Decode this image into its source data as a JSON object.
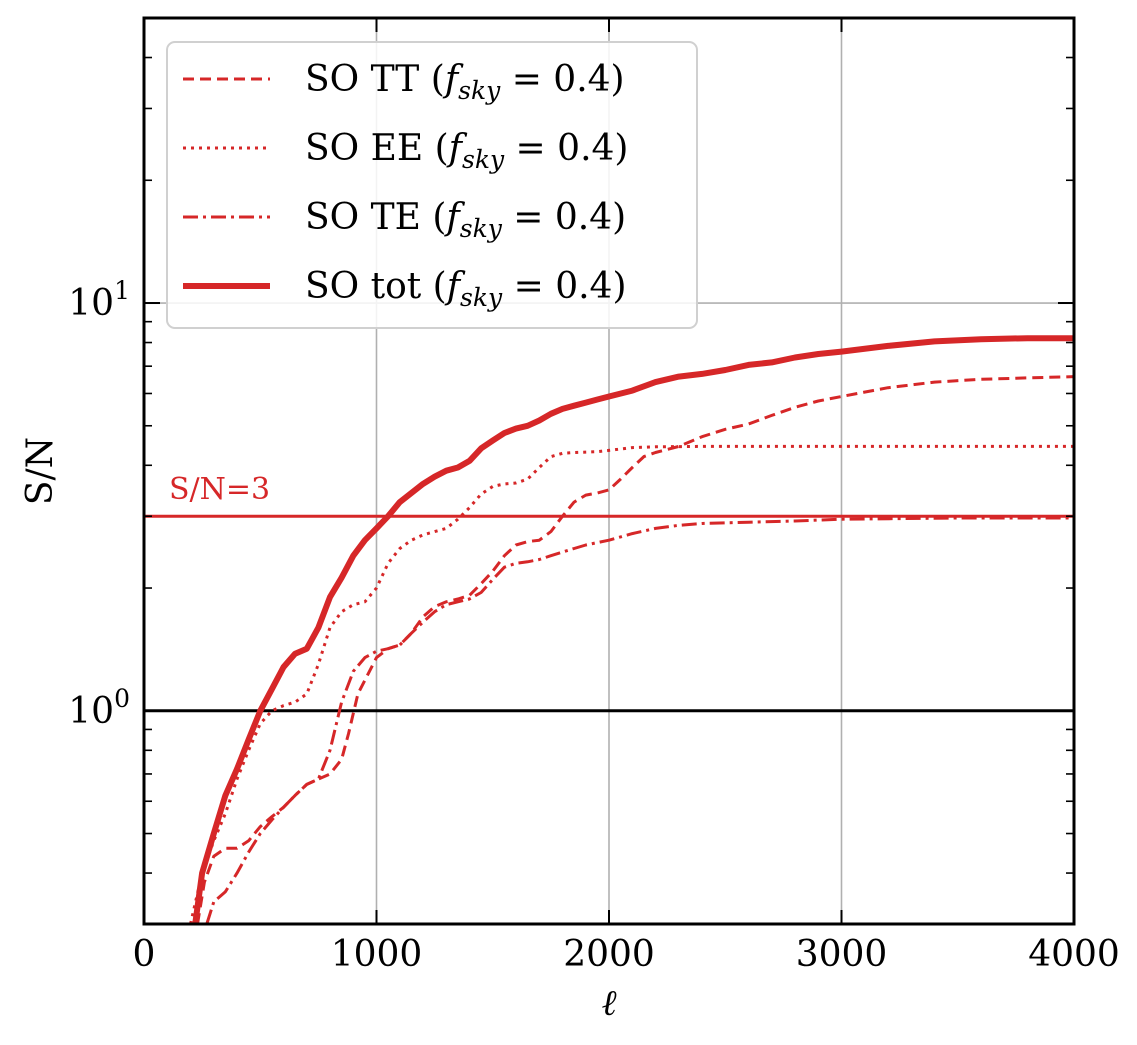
{
  "chart_data": {
    "type": "line",
    "title": "",
    "xlabel": "ℓ",
    "ylabel": "S/N",
    "x_scale": "linear",
    "y_scale": "log",
    "xlim": [
      0,
      4000
    ],
    "ylim": [
      0.3,
      50
    ],
    "grid": true,
    "legend_position": "top-left",
    "x_ticks": [
      {
        "value": 0,
        "label": "0"
      },
      {
        "value": 1000,
        "label": "1000"
      },
      {
        "value": 2000,
        "label": "2000"
      },
      {
        "value": 3000,
        "label": "3000"
      },
      {
        "value": 4000,
        "label": "4000"
      }
    ],
    "y_ticks": [
      {
        "value": 1,
        "base": "10",
        "exp": "0"
      },
      {
        "value": 10,
        "base": "10",
        "exp": "1"
      }
    ],
    "series": [
      {
        "name": "SO TT",
        "legend_prefix": "SO TT (",
        "legend_suffix": " = 0.4)",
        "color": "#d62728",
        "style": "dashed",
        "x": [
          230,
          260,
          300,
          350,
          400,
          450,
          500,
          550,
          600,
          650,
          700,
          750,
          800,
          850,
          880,
          920,
          1000,
          1050,
          1100,
          1150,
          1200,
          1250,
          1300,
          1350,
          1400,
          1450,
          1500,
          1550,
          1600,
          1650,
          1700,
          1750,
          1800,
          1850,
          1900,
          1950,
          2000,
          2050,
          2100,
          2150,
          2200,
          2300,
          2400,
          2500,
          2600,
          2700,
          2800,
          2900,
          3000,
          3200,
          3400,
          3600,
          3800,
          4000
        ],
        "y": [
          0.3,
          0.38,
          0.44,
          0.46,
          0.46,
          0.48,
          0.52,
          0.55,
          0.58,
          0.62,
          0.66,
          0.68,
          0.7,
          0.76,
          0.88,
          1.1,
          1.35,
          1.42,
          1.45,
          1.55,
          1.7,
          1.8,
          1.85,
          1.88,
          1.92,
          2.05,
          2.2,
          2.4,
          2.55,
          2.6,
          2.62,
          2.75,
          3.0,
          3.25,
          3.38,
          3.42,
          3.48,
          3.7,
          3.95,
          4.2,
          4.3,
          4.45,
          4.7,
          4.9,
          5.05,
          5.3,
          5.55,
          5.75,
          5.9,
          6.2,
          6.4,
          6.5,
          6.55,
          6.6
        ]
      },
      {
        "name": "SO EE",
        "legend_prefix": "SO EE (",
        "legend_suffix": " = 0.4)",
        "color": "#d62728",
        "style": "dotted",
        "x": [
          200,
          250,
          300,
          350,
          400,
          450,
          500,
          550,
          600,
          650,
          700,
          750,
          800,
          850,
          900,
          950,
          1000,
          1050,
          1100,
          1150,
          1200,
          1250,
          1300,
          1350,
          1400,
          1450,
          1500,
          1550,
          1600,
          1650,
          1700,
          1750,
          1800,
          1850,
          1900,
          1950,
          2000,
          2100,
          2200,
          2400,
          2600,
          2800,
          3000,
          3200,
          3500,
          4000
        ],
        "y": [
          0.3,
          0.4,
          0.48,
          0.56,
          0.68,
          0.8,
          0.93,
          1.0,
          1.03,
          1.05,
          1.1,
          1.3,
          1.6,
          1.75,
          1.82,
          1.85,
          2.0,
          2.3,
          2.5,
          2.62,
          2.7,
          2.75,
          2.8,
          2.95,
          3.15,
          3.4,
          3.55,
          3.6,
          3.62,
          3.7,
          3.95,
          4.2,
          4.28,
          4.3,
          4.31,
          4.32,
          4.35,
          4.42,
          4.44,
          4.45,
          4.45,
          4.45,
          4.45,
          4.45,
          4.45,
          4.45
        ]
      },
      {
        "name": "SO TE",
        "legend_prefix": "SO TE (",
        "legend_suffix": " = 0.4)",
        "color": "#d62728",
        "style": "dashdot",
        "x": [
          270,
          300,
          350,
          400,
          450,
          500,
          550,
          600,
          650,
          700,
          750,
          800,
          850,
          900,
          950,
          1000,
          1050,
          1100,
          1150,
          1200,
          1250,
          1300,
          1350,
          1400,
          1450,
          1500,
          1550,
          1600,
          1650,
          1700,
          1750,
          1800,
          1850,
          1900,
          2000,
          2100,
          2200,
          2300,
          2400,
          2600,
          2800,
          3000,
          3500,
          4000
        ],
        "y": [
          0.3,
          0.34,
          0.36,
          0.4,
          0.45,
          0.5,
          0.54,
          0.58,
          0.62,
          0.66,
          0.68,
          0.8,
          1.05,
          1.25,
          1.35,
          1.4,
          1.42,
          1.45,
          1.55,
          1.65,
          1.75,
          1.82,
          1.85,
          1.88,
          1.95,
          2.1,
          2.25,
          2.3,
          2.32,
          2.35,
          2.4,
          2.45,
          2.5,
          2.55,
          2.62,
          2.72,
          2.8,
          2.85,
          2.88,
          2.9,
          2.92,
          2.95,
          2.97,
          2.97
        ]
      },
      {
        "name": "SO tot",
        "legend_prefix": "SO tot (",
        "legend_suffix": " = 0.4)",
        "color": "#d62728",
        "style": "solid-thick",
        "x": [
          220,
          250,
          300,
          350,
          400,
          450,
          500,
          550,
          600,
          650,
          700,
          750,
          800,
          850,
          900,
          950,
          1000,
          1050,
          1100,
          1150,
          1200,
          1250,
          1300,
          1350,
          1400,
          1450,
          1500,
          1550,
          1600,
          1650,
          1700,
          1750,
          1800,
          1850,
          1900,
          1950,
          2000,
          2100,
          2200,
          2300,
          2400,
          2500,
          2600,
          2700,
          2800,
          2900,
          3000,
          3200,
          3400,
          3600,
          3800,
          4000
        ],
        "y": [
          0.3,
          0.4,
          0.5,
          0.62,
          0.72,
          0.85,
          1.0,
          1.13,
          1.28,
          1.38,
          1.42,
          1.6,
          1.9,
          2.12,
          2.4,
          2.62,
          2.8,
          3.0,
          3.25,
          3.42,
          3.6,
          3.75,
          3.88,
          3.95,
          4.1,
          4.4,
          4.6,
          4.8,
          4.92,
          5.0,
          5.15,
          5.35,
          5.5,
          5.6,
          5.7,
          5.8,
          5.9,
          6.1,
          6.4,
          6.6,
          6.7,
          6.85,
          7.05,
          7.15,
          7.35,
          7.5,
          7.6,
          7.85,
          8.05,
          8.15,
          8.2,
          8.2
        ]
      }
    ],
    "reference_lines": [
      {
        "y": 3,
        "label": "S/N=3",
        "color": "#d62728"
      },
      {
        "y": 1,
        "label": "",
        "color": "#000000"
      }
    ],
    "fsky_symbol": "f",
    "fsky_subscript": "sky"
  }
}
